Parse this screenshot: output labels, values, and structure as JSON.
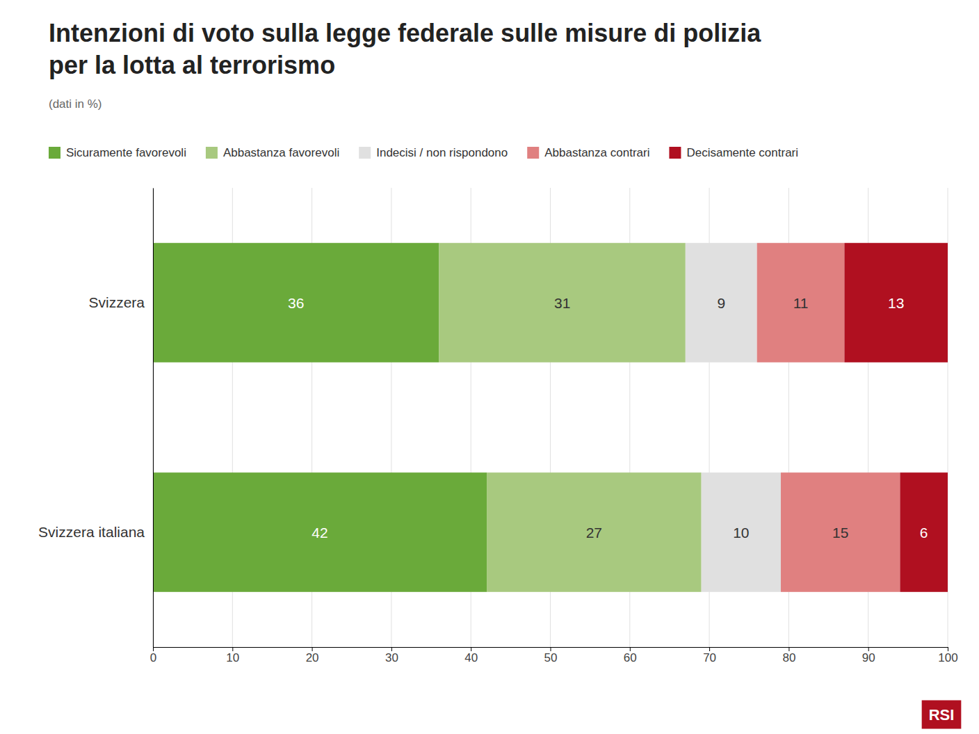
{
  "chart_data": {
    "type": "bar",
    "orientation": "horizontal",
    "stacked": true,
    "title": "Intenzioni di voto sulla legge federale sulle misure di polizia\nper la lotta al terrorismo",
    "subtitle": "(dati in %)",
    "categories": [
      "Svizzera",
      "Svizzera italiana"
    ],
    "series": [
      {
        "name": "Sicuramente favorevoli",
        "color": "#6aaa3a",
        "values": [
          36,
          42
        ]
      },
      {
        "name": "Abbastanza favorevoli",
        "color": "#a8c97f",
        "values": [
          31,
          27
        ]
      },
      {
        "name": "Indecisi / non rispondono",
        "color": "#e0e0e0",
        "values": [
          9,
          10
        ]
      },
      {
        "name": "Abbastanza contrari",
        "color": "#e08080",
        "values": [
          11,
          15
        ]
      },
      {
        "name": "Decisamente contrari",
        "color": "#b01020",
        "values": [
          13,
          6
        ]
      }
    ],
    "xlim": [
      0,
      100
    ],
    "xticks": [
      0,
      10,
      20,
      30,
      40,
      50,
      60,
      70,
      80,
      90,
      100
    ],
    "grid": true,
    "legend": "top-left",
    "data_labels": true,
    "annotations": [
      {
        "text": "RSI",
        "color": "#b01020"
      }
    ]
  }
}
